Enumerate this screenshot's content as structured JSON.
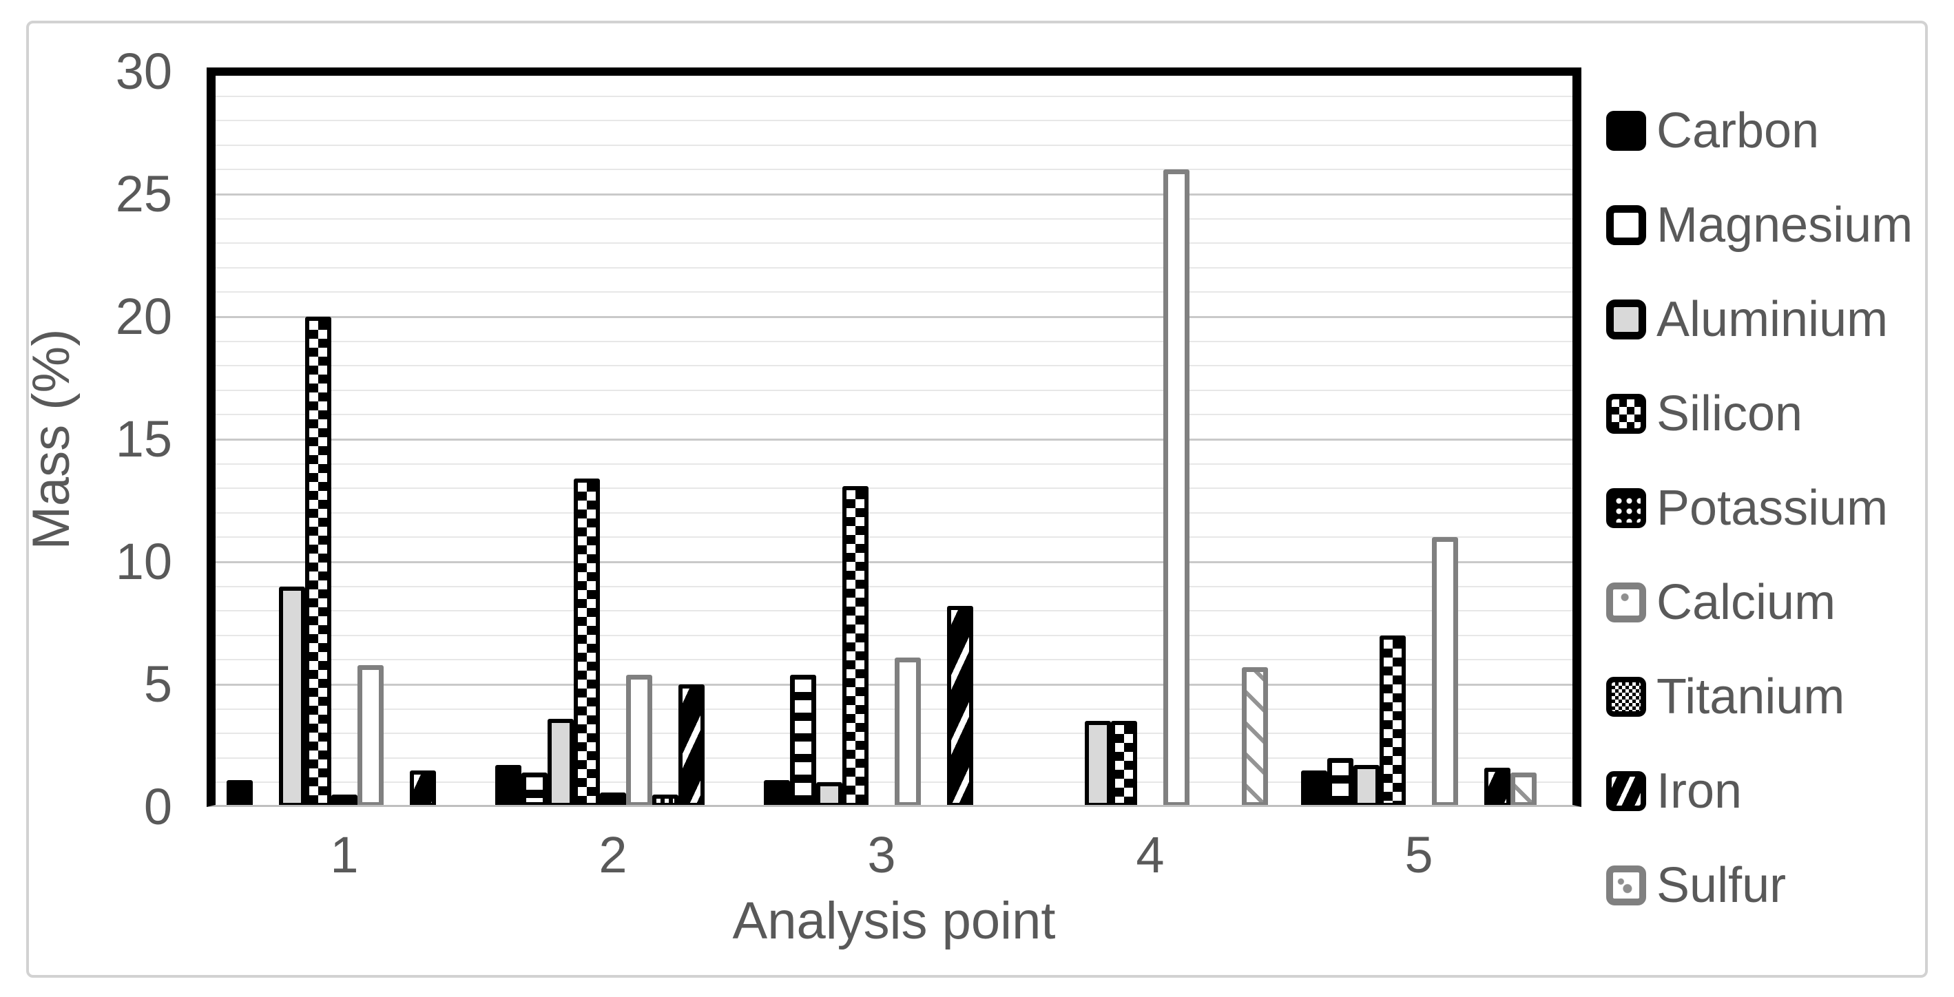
{
  "chart_data": {
    "type": "bar",
    "title": "",
    "xlabel": "Analysis point",
    "ylabel": "Mass (%)",
    "ylim": [
      0,
      30
    ],
    "y_major_ticks": [
      0,
      5,
      10,
      15,
      20,
      25,
      30
    ],
    "y_minor_step": 1,
    "grid": "horizontal major + minor gridlines",
    "legend_position": "right",
    "categories": [
      "1",
      "2",
      "3",
      "4",
      "5"
    ],
    "series": [
      {
        "name": "Carbon",
        "pattern": "solid-black",
        "values": [
          1.1,
          1.7,
          1.1,
          0,
          1.5
        ]
      },
      {
        "name": "Magnesium",
        "pattern": "horizontal-stripes",
        "values": [
          0,
          1.4,
          5.4,
          0,
          2.0
        ]
      },
      {
        "name": "Aluminium",
        "pattern": "solid-light-gray",
        "values": [
          9.0,
          3.6,
          1.0,
          3.5,
          1.7
        ]
      },
      {
        "name": "Silicon",
        "pattern": "checkerboard-large",
        "values": [
          20.0,
          13.4,
          13.1,
          3.5,
          7.0
        ]
      },
      {
        "name": "Potassium",
        "pattern": "black-with-white-dots",
        "values": [
          0.5,
          0.6,
          0,
          0,
          0
        ]
      },
      {
        "name": "Calcium",
        "pattern": "white-dotted-gray-frame",
        "values": [
          5.8,
          5.4,
          6.1,
          26.0,
          11.0
        ]
      },
      {
        "name": "Titanium",
        "pattern": "checkerboard-fine",
        "values": [
          0,
          0.5,
          0,
          0,
          0
        ]
      },
      {
        "name": "Iron",
        "pattern": "diagonal-wave-black",
        "values": [
          1.5,
          5.0,
          8.2,
          0,
          1.6
        ]
      },
      {
        "name": "Sulfur",
        "pattern": "gray-zigzag-dots",
        "values": [
          0,
          0,
          0,
          5.7,
          1.4
        ]
      }
    ]
  },
  "colors": {
    "text": "#595959",
    "grid_minor": "#e7e7e7",
    "grid_major": "#c9c9c9",
    "frame": "#000000",
    "baseline": "#bfbfbf",
    "fill_gray": "#d9d9d9",
    "pattern_gray": "#808080",
    "border_outer": "#d2d2d2",
    "background": "#ffffff"
  }
}
